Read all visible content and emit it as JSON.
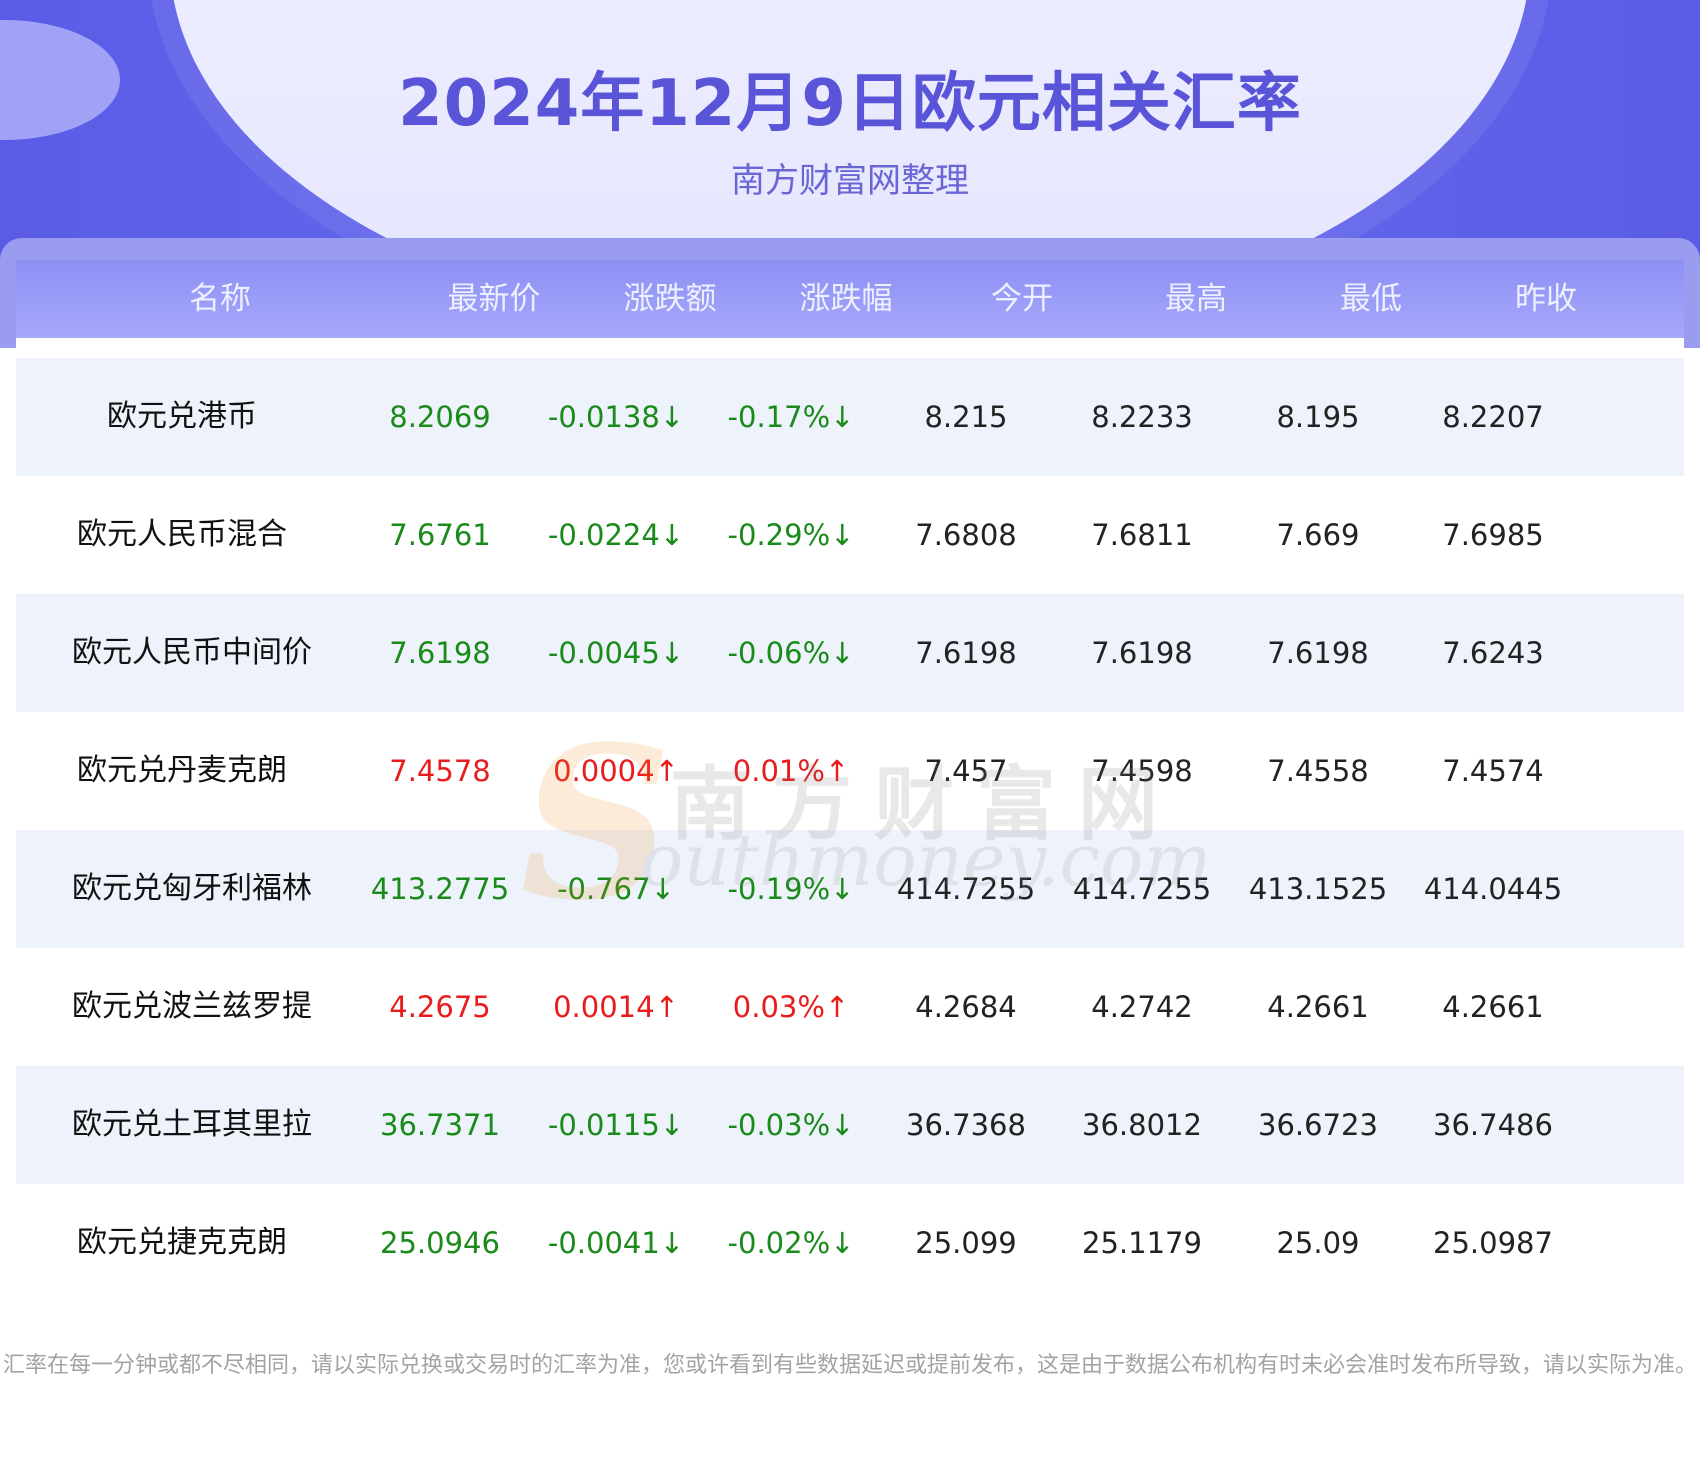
{
  "header": {
    "title": "2024年12月9日欧元相关汇率",
    "subtitle": "南方财富网整理"
  },
  "table": {
    "columns": [
      "名称",
      "最新价",
      "涨跌额",
      "涨跌幅",
      "今开",
      "最高",
      "最低",
      "昨收"
    ],
    "rows": [
      {
        "name": "欧元兑港币",
        "latest": "8.2069",
        "change": "-0.0138↓",
        "pct": "-0.17%↓",
        "open": "8.215",
        "high": "8.2233",
        "low": "8.195",
        "prev": "8.2207",
        "trend": "down"
      },
      {
        "name": "欧元人民币混合",
        "latest": "7.6761",
        "change": "-0.0224↓",
        "pct": "-0.29%↓",
        "open": "7.6808",
        "high": "7.6811",
        "low": "7.669",
        "prev": "7.6985",
        "trend": "down"
      },
      {
        "name": "欧元人民币中间价",
        "latest": "7.6198",
        "change": "-0.0045↓",
        "pct": "-0.06%↓",
        "open": "7.6198",
        "high": "7.6198",
        "low": "7.6198",
        "prev": "7.6243",
        "trend": "down"
      },
      {
        "name": "欧元兑丹麦克朗",
        "latest": "7.4578",
        "change": "0.0004↑",
        "pct": "0.01%↑",
        "open": "7.457",
        "high": "7.4598",
        "low": "7.4558",
        "prev": "7.4574",
        "trend": "up"
      },
      {
        "name": "欧元兑匈牙利福林",
        "latest": "413.2775",
        "change": "-0.767↓",
        "pct": "-0.19%↓",
        "open": "414.7255",
        "high": "414.7255",
        "low": "413.1525",
        "prev": "414.0445",
        "trend": "down"
      },
      {
        "name": "欧元兑波兰兹罗提",
        "latest": "4.2675",
        "change": "0.0014↑",
        "pct": "0.03%↑",
        "open": "4.2684",
        "high": "4.2742",
        "low": "4.2661",
        "prev": "4.2661",
        "trend": "up"
      },
      {
        "name": "欧元兑土耳其里拉",
        "latest": "36.7371",
        "change": "-0.0115↓",
        "pct": "-0.03%↓",
        "open": "36.7368",
        "high": "36.8012",
        "low": "36.6723",
        "prev": "36.7486",
        "trend": "down"
      },
      {
        "name": "欧元兑捷克克朗",
        "latest": "25.0946",
        "change": "-0.0041↓",
        "pct": "-0.02%↓",
        "open": "25.099",
        "high": "25.1179",
        "low": "25.09",
        "prev": "25.0987",
        "trend": "down"
      }
    ]
  },
  "watermark": {
    "letter": "S",
    "cn": "南方财富网",
    "en": "outhmoney.com"
  },
  "footer": {
    "text": "汇率在每一分钟或都不尽相同，请以实际兑换或交易时的汇率为准，您或许看到有些数据延迟或提前发布，这是由于数据公布机构有时未必会准时发布所导致，请以实际为准。"
  },
  "colors": {
    "accent": "#5a55d8",
    "header_row": "#9a9cf0",
    "row_shade": "#eef3fb",
    "down": "#1a8a1a",
    "up": "#e81c1c"
  }
}
